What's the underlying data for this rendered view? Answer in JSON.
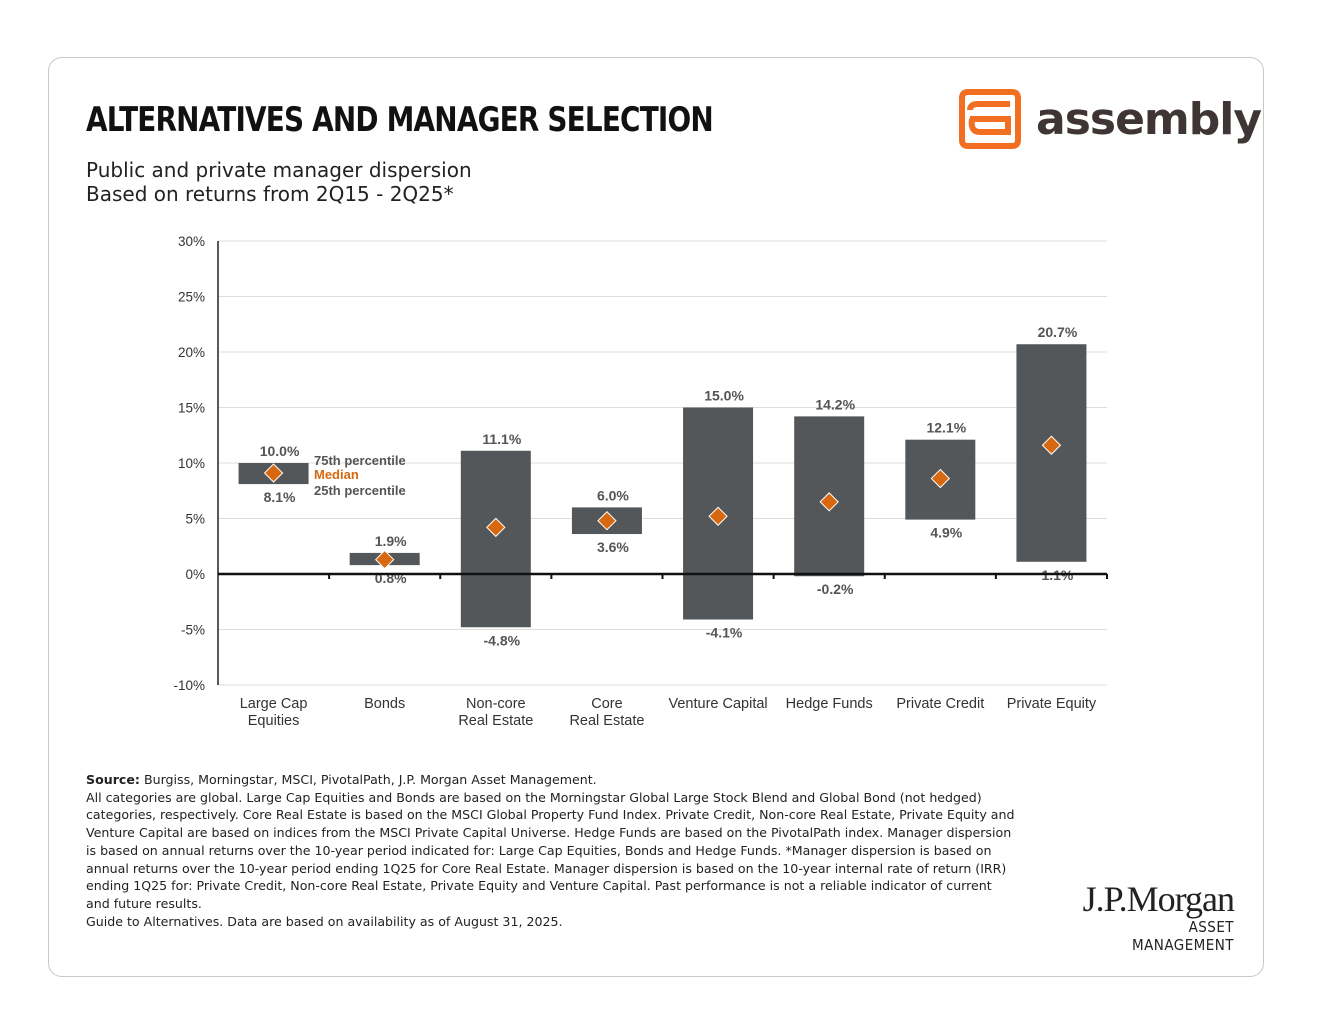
{
  "header": {
    "title": "ALTERNATIVES AND MANAGER SELECTION",
    "subtitle_1": "Public and private manager dispersion",
    "subtitle_2": "Based on returns from 2Q15 - 2Q25*",
    "logo_text": "assembly",
    "brand_color": "#f26f21"
  },
  "chart_data": {
    "type": "bar",
    "subtype": "floating-range with median marker",
    "categories": [
      [
        "Large Cap",
        "Equities"
      ],
      [
        "Bonds"
      ],
      [
        "Non-core",
        "Real Estate"
      ],
      [
        "Core",
        "Real Estate"
      ],
      [
        "Venture Capital"
      ],
      [
        "Hedge Funds"
      ],
      [
        "Private Credit"
      ],
      [
        "Private Equity"
      ]
    ],
    "series": [
      {
        "name": "75th percentile",
        "values": [
          10.0,
          1.9,
          11.1,
          6.0,
          15.0,
          14.2,
          12.1,
          20.7
        ]
      },
      {
        "name": "25th percentile",
        "values": [
          8.1,
          0.8,
          -4.8,
          3.6,
          -4.1,
          -0.2,
          4.9,
          1.1
        ]
      },
      {
        "name": "Median",
        "values": [
          9.1,
          1.3,
          4.2,
          4.8,
          5.2,
          6.5,
          8.6,
          11.6
        ]
      }
    ],
    "top_labels": [
      "10.0%",
      "1.9%",
      "11.1%",
      "6.0%",
      "15.0%",
      "14.2%",
      "12.1%",
      "20.7%"
    ],
    "bottom_labels": [
      "8.1%",
      "0.8%",
      "-4.8%",
      "3.6%",
      "-4.1%",
      "-0.2%",
      "4.9%",
      "1.1%"
    ],
    "legend": {
      "p75": "75th percentile",
      "median": "Median",
      "p25": "25th percentile",
      "placement": "beside first bar"
    },
    "ylim": [
      -10,
      30
    ],
    "yticks": [
      30,
      25,
      20,
      15,
      10,
      5,
      0,
      -5,
      -10
    ],
    "ytick_labels": [
      "30%",
      "25%",
      "20%",
      "15%",
      "10%",
      "5%",
      "0%",
      "-5%",
      "-10%"
    ],
    "grid": true,
    "colors": {
      "bar": "#54575a",
      "median": "#d8680f",
      "grid": "#dddddd"
    }
  },
  "notes": {
    "source_label": "Source:",
    "source_text": " Burgiss, Morningstar, MSCI, PivotalPath, J.P. Morgan Asset Management.",
    "body": "All categories are global. Large Cap Equities and Bonds are based on the Morningstar Global Large Stock Blend and Global Bond (not hedged) categories, respectively. Core Real Estate is based on the MSCI Global Property Fund Index. Private Credit, Non-core Real Estate, Private Equity and Venture Capital are based on indices from the MSCI Private Capital Universe. Hedge Funds are based on the PivotalPath index. Manager dispersion is based on annual returns over the 10-year period indicated for: Large Cap Equities, Bonds and Hedge Funds. *Manager dispersion is based on annual returns over the 10-year period ending 1Q25 for Core Real Estate. Manager dispersion is based on the 10-year internal rate of return (IRR) ending 1Q25 for: Private Credit, Non-core Real Estate, Private Equity and Venture Capital. Past performance is not a reliable indicator of current and future results.",
    "footer": "Guide to Alternatives. Data are based on availability as of August 31, 2025."
  },
  "footer_logo": {
    "name": "J.P.Morgan",
    "sub": "ASSET MANAGEMENT"
  }
}
